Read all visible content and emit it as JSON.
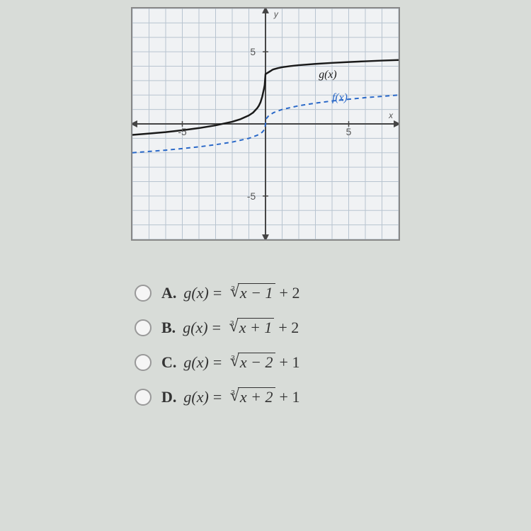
{
  "graph": {
    "type": "line",
    "xlim": [
      -8,
      8
    ],
    "ylim": [
      -8,
      8
    ],
    "xtick_major": [
      -5,
      5
    ],
    "ytick_major": [
      -5,
      5
    ],
    "xtick_labels": [
      "-5",
      "5"
    ],
    "ytick_labels": [
      "-5",
      "5"
    ],
    "grid_color": "#b8c4d0",
    "axis_color": "#444444",
    "background_color": "#f0f2f4",
    "border_color": "#888888",
    "axis_label_y": "y",
    "axis_label_x": "x",
    "label_fontsize": 12,
    "tick_fontsize": 14,
    "curves": [
      {
        "name": "g(x)",
        "label": "g(x)",
        "color": "#1a1a1a",
        "stroke_width": 2.5,
        "dash": "none",
        "label_pos": {
          "x": 3.2,
          "y": 3.2
        },
        "points": [
          [
            -8,
            -0.76
          ],
          [
            -7,
            -0.67
          ],
          [
            -6,
            -0.57
          ],
          [
            -5,
            -0.44
          ],
          [
            -4,
            -0.29
          ],
          [
            -3,
            -0.1
          ],
          [
            -2,
            0.15
          ],
          [
            -1.5,
            0.33
          ],
          [
            -1,
            0.59
          ],
          [
            -0.75,
            0.78
          ],
          [
            -0.5,
            1.09
          ],
          [
            -0.4,
            1.26
          ],
          [
            -0.3,
            1.5
          ],
          [
            -0.2,
            1.87
          ],
          [
            -0.1,
            2.39
          ],
          [
            -0.05,
            2.69
          ],
          [
            0,
            3.45
          ],
          [
            0.35,
            3.7
          ],
          [
            0.4,
            3.74
          ],
          [
            0.5,
            3.79
          ],
          [
            0.75,
            3.87
          ],
          [
            1,
            3.93
          ],
          [
            1.5,
            4.01
          ],
          [
            2,
            4.07
          ],
          [
            3,
            4.16
          ],
          [
            4,
            4.23
          ],
          [
            5,
            4.29
          ],
          [
            6,
            4.34
          ],
          [
            7,
            4.39
          ],
          [
            8,
            4.43
          ]
        ],
        "points_scale_y": 0.5
      },
      {
        "name": "f(x)",
        "label": "f(x)",
        "color": "#2968c8",
        "stroke_width": 2,
        "dash": "6,5",
        "label_pos": {
          "x": 4.0,
          "y": 1.6
        },
        "points": [
          [
            -8,
            -2.0
          ],
          [
            -7,
            -1.91
          ],
          [
            -6,
            -1.82
          ],
          [
            -5,
            -1.71
          ],
          [
            -4,
            -1.59
          ],
          [
            -3,
            -1.44
          ],
          [
            -2,
            -1.26
          ],
          [
            -1,
            -1.0
          ],
          [
            -0.5,
            -0.79
          ],
          [
            -0.2,
            -0.58
          ],
          [
            -0.05,
            -0.37
          ],
          [
            0,
            0
          ],
          [
            0.05,
            0.37
          ],
          [
            0.2,
            0.58
          ],
          [
            0.5,
            0.79
          ],
          [
            1,
            1.0
          ],
          [
            2,
            1.26
          ],
          [
            3,
            1.44
          ],
          [
            4,
            1.59
          ],
          [
            5,
            1.71
          ],
          [
            6,
            1.82
          ],
          [
            7,
            1.91
          ],
          [
            8,
            2.0
          ]
        ],
        "points_scale_y": 1.0
      }
    ]
  },
  "options": [
    {
      "letter": "A.",
      "fn": "g(x)",
      "radicand": "x − 1",
      "tail": "+ 2"
    },
    {
      "letter": "B.",
      "fn": "g(x)",
      "radicand": "x + 1",
      "tail": "+ 2"
    },
    {
      "letter": "C.",
      "fn": "g(x)",
      "radicand": "x − 2",
      "tail": "+ 1"
    },
    {
      "letter": "D.",
      "fn": "g(x)",
      "radicand": "x + 2",
      "tail": "+ 1"
    }
  ],
  "root_index": "3",
  "equals": " = "
}
